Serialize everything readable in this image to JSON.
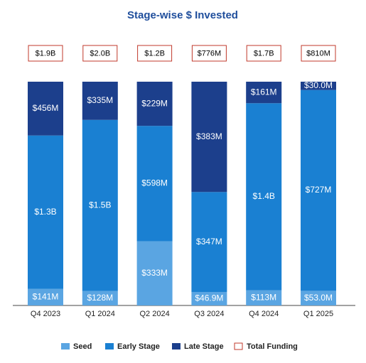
{
  "chart_data": {
    "type": "stacked_percent_bar",
    "title": "Stage-wise $ Invested",
    "categories": [
      "Q4 2023",
      "Q1 2024",
      "Q2 2024",
      "Q3 2024",
      "Q4 2024",
      "Q1 2025"
    ],
    "series": [
      {
        "name": "Seed",
        "color": "#5aa5e2",
        "values": [
          141,
          128,
          333,
          46.9,
          113,
          53.0
        ],
        "value_labels": [
          "$141M",
          "$128M",
          "$333M",
          "$46.9M",
          "$113M",
          "$53.0M"
        ]
      },
      {
        "name": "Early Stage",
        "color": "#1a80d2",
        "values": [
          1300,
          1500,
          598,
          347,
          1400,
          727
        ],
        "value_labels": [
          "$1.3B",
          "$1.5B",
          "$598M",
          "$347M",
          "$1.4B",
          "$727M"
        ]
      },
      {
        "name": "Late Stage",
        "color": "#1c3f8c",
        "values": [
          456,
          335,
          229,
          383,
          161,
          30.0
        ],
        "value_labels": [
          "$456M",
          "$335M",
          "$229M",
          "$383M",
          "$161M",
          "$30.0M"
        ]
      }
    ],
    "totals": {
      "name": "Total Funding",
      "color": "#c0392b",
      "values": [
        1900,
        2000,
        1200,
        776,
        1700,
        810
      ],
      "value_labels": [
        "$1.9B",
        "$2.0B",
        "$1.2B",
        "$776M",
        "$1.7B",
        "$810M"
      ]
    }
  }
}
